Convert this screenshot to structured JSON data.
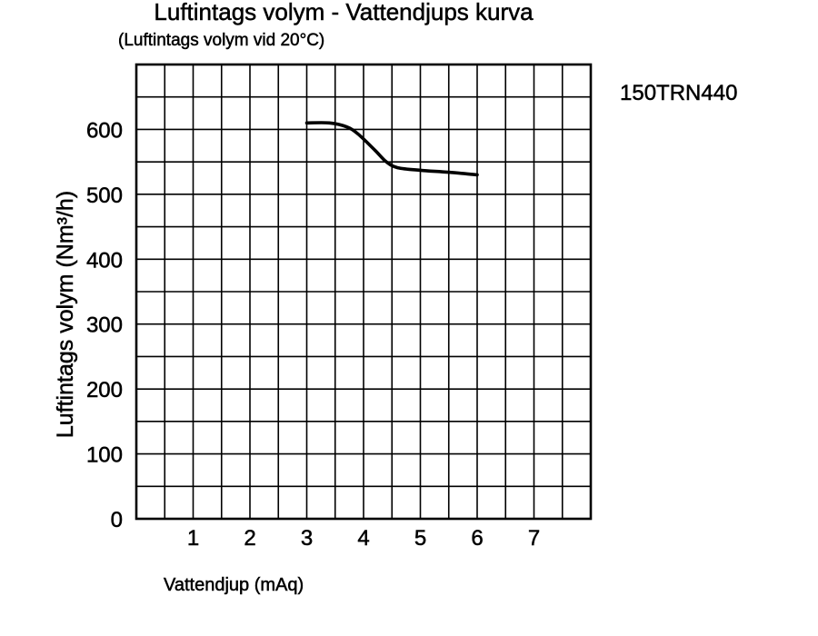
{
  "chart_data": {
    "type": "line",
    "title": "Luftintags volym - Vattendjups kurva",
    "subtitle": "(Luftintags volym vid 20°C)",
    "model_label": "150TRN440",
    "xlabel": "Vattendjup (mAq)",
    "ylabel": "Luftintags volym (Nm³/h)",
    "xlim": [
      0,
      8
    ],
    "ylim": [
      0,
      700
    ],
    "x_ticks": [
      "1",
      "2",
      "3",
      "4",
      "5",
      "6",
      "7"
    ],
    "y_ticks": [
      "0",
      "100",
      "200",
      "300",
      "400",
      "500",
      "600"
    ],
    "grid": true,
    "series": [
      {
        "x": [
          3.0,
          3.4,
          3.7,
          3.9,
          4.2,
          4.4,
          4.6,
          5.0,
          5.5,
          6.0
        ],
        "y": [
          610,
          610,
          604,
          593,
          568,
          550,
          541,
          537,
          534,
          530
        ]
      }
    ]
  }
}
